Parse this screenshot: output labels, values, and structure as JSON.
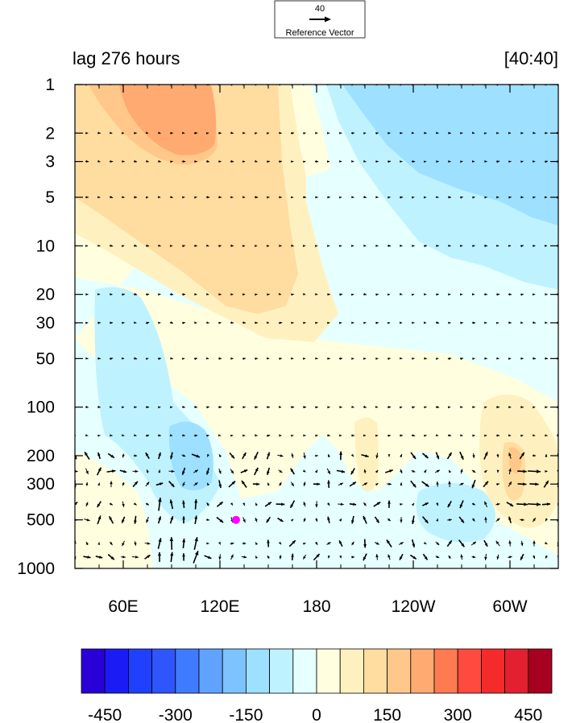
{
  "reference_vector": {
    "value": "40",
    "label": "Reference Vector"
  },
  "chart_data": {
    "type": "heatmap",
    "title_left": "lag 276 hours",
    "title_right": "[40:40]",
    "y_axis": {
      "scale": "log",
      "reversed": true,
      "range": [
        1,
        1000
      ],
      "tick_labels": [
        "1",
        "2",
        "3",
        "5",
        "10",
        "20",
        "30",
        "50",
        "100",
        "200",
        "300",
        "500",
        "1000"
      ]
    },
    "x_axis": {
      "range_lon": [
        30,
        330
      ],
      "ticks": [
        {
          "lon": 60,
          "label": "60E"
        },
        {
          "lon": 120,
          "label": "120E"
        },
        {
          "lon": 180,
          "label": "180"
        },
        {
          "lon": 240,
          "label": "120W"
        },
        {
          "lon": 300,
          "label": "60W"
        }
      ]
    },
    "marker": {
      "lon": 130,
      "p": 500,
      "color": "#ff00ff"
    },
    "colorbar": {
      "levels": [
        -500,
        -450,
        -400,
        -350,
        -300,
        -250,
        -200,
        -150,
        -100,
        -50,
        0,
        50,
        100,
        150,
        200,
        250,
        300,
        350,
        400,
        450,
        500
      ],
      "labels": [
        "-450",
        "-300",
        "-150",
        "0",
        "150",
        "300",
        "450"
      ],
      "label_values": [
        -450,
        -300,
        -150,
        0,
        150,
        300,
        450
      ],
      "colors": [
        "#2a00d8",
        "#1b1cf5",
        "#2040ff",
        "#2f55ff",
        "#3f7bff",
        "#5fa3ff",
        "#7cc3ff",
        "#9ee0ff",
        "#bff2ff",
        "#e6ffff",
        "#ffffe0",
        "#fff1bf",
        "#ffdca0",
        "#ffc88a",
        "#ffaa70",
        "#ff7a50",
        "#ff4a40",
        "#f52a2a",
        "#e32030",
        "#a80020"
      ]
    }
  }
}
